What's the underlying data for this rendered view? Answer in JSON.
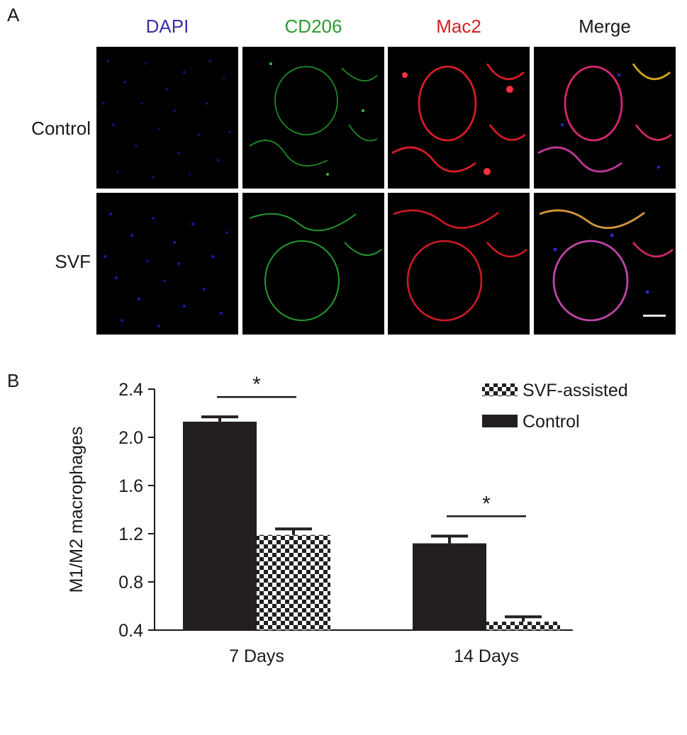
{
  "panel_a": {
    "letter": "A",
    "columns": [
      {
        "label": "DAPI",
        "color": "#3a2ea6"
      },
      {
        "label": "CD206",
        "color": "#2e9a2e"
      },
      {
        "label": "Mac2",
        "color": "#d62020"
      },
      {
        "label": "Merge",
        "color": "#1a1a1a"
      }
    ],
    "rows": [
      "Control",
      "SVF"
    ]
  },
  "panel_b": {
    "letter": "B"
  },
  "chart_data": {
    "type": "bar",
    "categories": [
      "7 Days",
      "14 Days"
    ],
    "series": [
      {
        "name": "Control",
        "values": [
          2.13,
          1.12
        ],
        "errors": [
          0.04,
          0.06
        ],
        "pattern": "solid"
      },
      {
        "name": "SVF-assisted",
        "values": [
          1.19,
          0.47
        ],
        "errors": [
          0.05,
          0.04
        ],
        "pattern": "checker"
      }
    ],
    "legend_order": [
      "SVF-assisted",
      "Control"
    ],
    "legend_placement": "top-right",
    "ylabel": "M1/M2  macrophages",
    "xlabel": "",
    "ylim": [
      0.4,
      2.4
    ],
    "yticks": [
      "0.4",
      "0.8",
      "1.2",
      "1.6",
      "2.0",
      "2.4"
    ],
    "significance": [
      "*",
      "*"
    ],
    "grid": false,
    "colors": {
      "bar": "#231f20",
      "axis": "#1a1a1a"
    }
  }
}
